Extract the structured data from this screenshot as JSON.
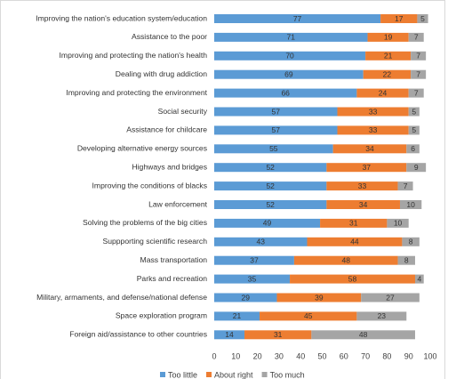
{
  "chart_data": {
    "type": "stacked-bar-horizontal",
    "categories": [
      "Improving the nation's education system/education",
      "Assistance to the poor",
      "Improving and protecting the nation's health",
      "Dealing with drug addiction",
      "Improving and protecting the environment",
      "Social security",
      "Assistance for childcare",
      "Developing alternative energy sources",
      "Highways and bridges",
      "Improving the conditions of blacks",
      "Law enforcement",
      "Solving the problems of the big cities",
      "Suppporting scientific research",
      "Mass transportation",
      "Parks and recreation",
      "Military, armaments, and defense/national defense",
      "Space exploration program",
      "Foreign aid/assistance to other countries"
    ],
    "series": [
      {
        "name": "Too little",
        "color": "#5b9bd5",
        "values": [
          77,
          71,
          70,
          69,
          66,
          57,
          57,
          55,
          52,
          52,
          52,
          49,
          43,
          37,
          35,
          29,
          21,
          14
        ]
      },
      {
        "name": "About right",
        "color": "#ed7d31",
        "values": [
          17,
          19,
          21,
          22,
          24,
          33,
          33,
          34,
          37,
          33,
          34,
          31,
          44,
          48,
          58,
          39,
          45,
          31
        ]
      },
      {
        "name": "Too much",
        "color": "#a5a5a5",
        "values": [
          5,
          7,
          7,
          7,
          7,
          5,
          5,
          6,
          9,
          7,
          10,
          10,
          8,
          8,
          4,
          27,
          23,
          48
        ]
      }
    ],
    "xlim": [
      0,
      100
    ],
    "xticks": [
      0,
      10,
      20,
      30,
      40,
      50,
      60,
      70,
      80,
      90,
      100
    ],
    "legend": "bottom"
  }
}
